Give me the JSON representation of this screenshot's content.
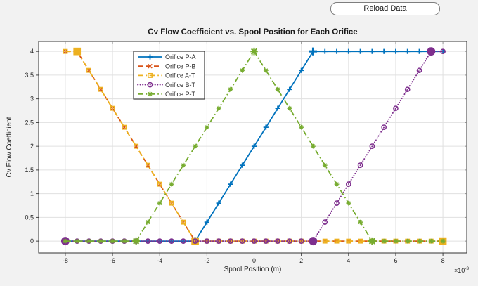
{
  "toolbar": {
    "reload_button": "Reload Data"
  },
  "figure": {
    "background": "#f2f2f2",
    "plot_background": "#ffffff",
    "grid_color": "#e0e0e0",
    "axis_color": "#333333",
    "text_color": "#262626",
    "legend_border": "#3c3c3c"
  },
  "chart_data": {
    "type": "line",
    "title": "Cv Flow Coefficient vs. Spool Position for Each Orifice",
    "xlabel": "Spool Position (m)",
    "ylabel": "Cv Flow Coefficient",
    "x_multiplier": {
      "base": "×10",
      "exponent": "-3"
    },
    "x_units_note": "x values are in units of 1e-3 m",
    "grid": true,
    "legend_position": "upper-left-inside",
    "xlim": [
      -9.13,
      9.01
    ],
    "ylim": [
      -0.25,
      4.21
    ],
    "xticks": [
      -8,
      -6,
      -4,
      -2,
      0,
      2,
      4,
      6,
      8
    ],
    "yticks": [
      0,
      0.5,
      1,
      1.5,
      2,
      2.5,
      3,
      3.5,
      4
    ],
    "x": [
      -8,
      -7.5,
      -7,
      -6.5,
      -6,
      -5.5,
      -5,
      -4.5,
      -4,
      -3.5,
      -3,
      -2.5,
      -2,
      -1.5,
      -1,
      -0.5,
      0,
      0.5,
      1,
      1.5,
      2,
      2.5,
      3,
      3.5,
      4,
      4.5,
      5,
      5.5,
      6,
      6.5,
      7,
      7.5,
      8
    ],
    "series": [
      {
        "name": "Orifice P-A",
        "color": "#0072BD",
        "line": "solid",
        "marker": "plus",
        "knots": [
          -2.5,
          2.5
        ],
        "values": [
          0,
          0,
          0,
          0,
          0,
          0,
          0,
          0,
          0,
          0,
          0,
          0,
          0.4,
          0.8,
          1.2,
          1.6,
          2,
          2.4,
          2.8,
          3.2,
          3.6,
          4,
          4,
          4,
          4,
          4,
          4,
          4,
          4,
          4,
          4,
          4,
          4
        ]
      },
      {
        "name": "Orifice P-B",
        "color": "#D95319",
        "line": "dashed",
        "marker": "x",
        "knots": [
          -7.5,
          -2.5
        ],
        "values": [
          4,
          4,
          3.6,
          3.2,
          2.8,
          2.4,
          2,
          1.6,
          1.2,
          0.8,
          0.4,
          0,
          0,
          0,
          0,
          0,
          0,
          0,
          0,
          0,
          0,
          0,
          0,
          0,
          0,
          0,
          0,
          0,
          0,
          0,
          0,
          0,
          0
        ]
      },
      {
        "name": "Orifice A-T",
        "color": "#EDB120",
        "line": "dashdot",
        "marker": "square",
        "knots": [
          -7.5,
          -2.5,
          8
        ],
        "values": [
          4,
          4,
          3.6,
          3.2,
          2.8,
          2.4,
          2,
          1.6,
          1.2,
          0.8,
          0.4,
          0,
          0,
          0,
          0,
          0,
          0,
          0,
          0,
          0,
          0,
          0,
          0,
          0,
          0,
          0,
          0,
          0,
          0,
          0,
          0,
          0,
          0
        ]
      },
      {
        "name": "Orifice B-T",
        "color": "#7E2F8E",
        "line": "dotted",
        "marker": "circle",
        "knots": [
          -8,
          2.5,
          7.5
        ],
        "values": [
          0,
          0,
          0,
          0,
          0,
          0,
          0,
          0,
          0,
          0,
          0,
          0,
          0,
          0,
          0,
          0,
          0,
          0,
          0,
          0,
          0,
          0,
          0.4,
          0.8,
          1.2,
          1.6,
          2,
          2.4,
          2.8,
          3.2,
          3.6,
          4,
          4
        ]
      },
      {
        "name": "Orifice P-T",
        "color": "#77AC30",
        "line": "dashdot",
        "marker": "asterisk",
        "knots": [
          -5,
          0,
          5
        ],
        "values": [
          0,
          0,
          0,
          0,
          0,
          0,
          0,
          0.4,
          0.8,
          1.2,
          1.6,
          2,
          2.4,
          2.8,
          3.2,
          3.6,
          4,
          3.6,
          3.2,
          2.8,
          2.4,
          2,
          1.6,
          1.2,
          0.8,
          0.4,
          0,
          0,
          0,
          0,
          0,
          0,
          0
        ]
      }
    ]
  }
}
